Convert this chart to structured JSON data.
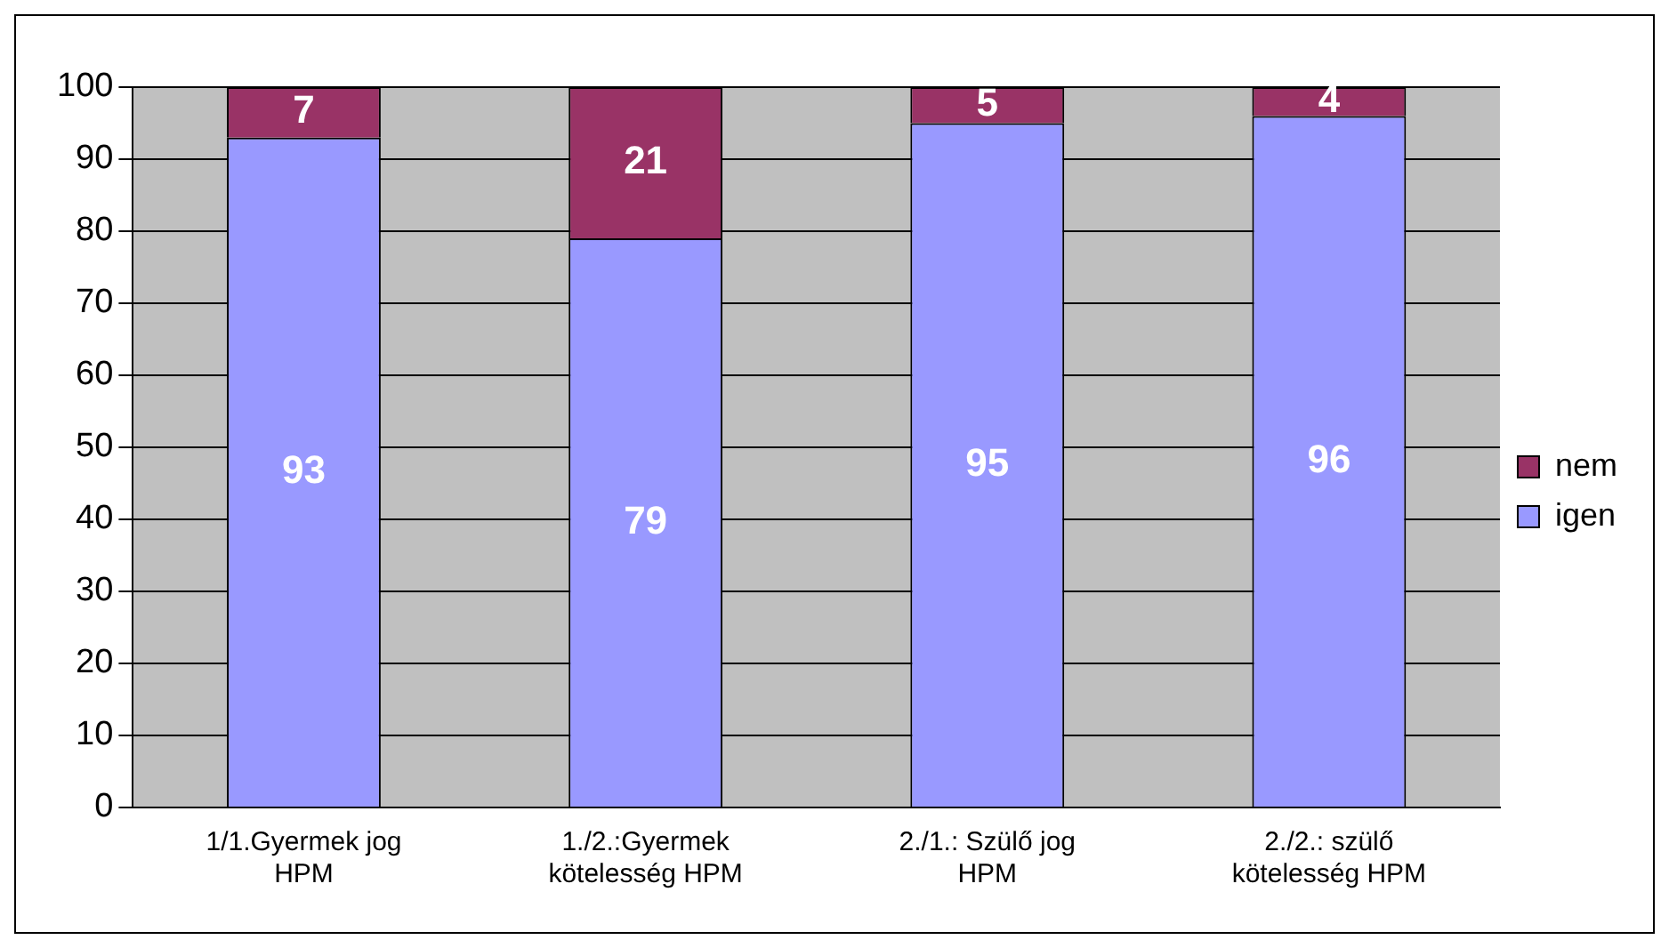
{
  "chart_data": {
    "type": "bar",
    "stacked": true,
    "categories": [
      "1/1.Gyermek jog HPM",
      "1./2.:Gyermek kötelesség HPM",
      "2./1.: Szülő jog HPM",
      "2./2.: szülő kötelesség HPM"
    ],
    "series": [
      {
        "name": "igen",
        "color": "#9999ff",
        "values": [
          93,
          79,
          95,
          96
        ]
      },
      {
        "name": "nem",
        "color": "#993366",
        "values": [
          7,
          21,
          5,
          4
        ]
      }
    ],
    "ylim": [
      0,
      100
    ],
    "yticks": [
      0,
      10,
      20,
      30,
      40,
      50,
      60,
      70,
      80,
      90,
      100
    ],
    "grid": "y",
    "legend": "right",
    "data_labels": true
  }
}
